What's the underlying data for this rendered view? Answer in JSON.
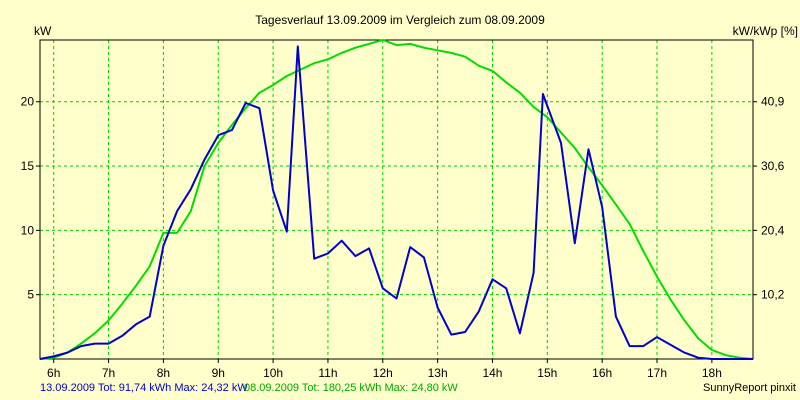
{
  "chart_data": {
    "type": "line",
    "title": "Tagesverlauf 13.09.2009 im Vergleich zum 08.09.2009",
    "ylabel_left": "kW",
    "ylabel_right": "kW/kWp [%]",
    "xlim": [
      5.75,
      18.75
    ],
    "ylim": [
      0,
      24.8
    ],
    "x_ticks": [
      {
        "value": 6,
        "label": "6h"
      },
      {
        "value": 7,
        "label": "7h"
      },
      {
        "value": 8,
        "label": "8h"
      },
      {
        "value": 9,
        "label": "9h"
      },
      {
        "value": 10,
        "label": "10h"
      },
      {
        "value": 11,
        "label": "11h"
      },
      {
        "value": 12,
        "label": "12h"
      },
      {
        "value": 13,
        "label": "13h"
      },
      {
        "value": 14,
        "label": "14h"
      },
      {
        "value": 15,
        "label": "15h"
      },
      {
        "value": 16,
        "label": "16h"
      },
      {
        "value": 17,
        "label": "17h"
      },
      {
        "value": 18,
        "label": "18h"
      }
    ],
    "y_ticks_left": [
      {
        "value": 5,
        "label": "5"
      },
      {
        "value": 10,
        "label": "10"
      },
      {
        "value": 15,
        "label": "15"
      },
      {
        "value": 20,
        "label": "20"
      }
    ],
    "y_ticks_right": [
      {
        "value": 5,
        "label": "10,2"
      },
      {
        "value": 10,
        "label": "20,4"
      },
      {
        "value": 15,
        "label": "30,6"
      },
      {
        "value": 20,
        "label": "40,9"
      }
    ],
    "grid": true,
    "colors": {
      "series1": "#0000cc",
      "series2": "#00dd00",
      "grid": "#00cc00",
      "background": "#ffffcc"
    },
    "series": [
      {
        "name": "13.09.2009",
        "color": "#0000cc",
        "x": [
          5.75,
          6.0,
          6.25,
          6.5,
          6.75,
          7.0,
          7.25,
          7.5,
          7.75,
          8.0,
          8.25,
          8.5,
          8.75,
          9.0,
          9.25,
          9.5,
          9.75,
          10.0,
          10.25,
          10.45,
          10.75,
          11.0,
          11.25,
          11.5,
          11.75,
          12.0,
          12.25,
          12.5,
          12.75,
          13.0,
          13.25,
          13.5,
          13.75,
          14.0,
          14.25,
          14.5,
          14.75,
          14.92,
          15.25,
          15.5,
          15.75,
          16.0,
          16.25,
          16.5,
          16.75,
          17.0,
          17.25,
          17.5,
          17.75,
          18.0,
          18.25,
          18.5,
          18.75
        ],
        "y": [
          0.0,
          0.2,
          0.5,
          1.0,
          1.2,
          1.2,
          1.8,
          2.7,
          3.3,
          8.8,
          11.5,
          13.2,
          15.5,
          17.4,
          17.8,
          19.9,
          19.5,
          13.1,
          9.9,
          24.3,
          7.8,
          8.2,
          9.2,
          8.0,
          8.6,
          5.5,
          4.7,
          8.7,
          7.9,
          4.0,
          1.9,
          2.1,
          3.7,
          6.2,
          5.5,
          2.0,
          6.7,
          20.6,
          16.8,
          9.0,
          16.3,
          11.8,
          3.3,
          1.0,
          1.0,
          1.7,
          1.1,
          0.5,
          0.1,
          0.0,
          0.0,
          0.0,
          0.0
        ]
      },
      {
        "name": "08.09.2009",
        "color": "#00dd00",
        "x": [
          5.75,
          6.0,
          6.25,
          6.5,
          6.75,
          7.0,
          7.25,
          7.5,
          7.75,
          8.0,
          8.25,
          8.5,
          8.75,
          9.0,
          9.25,
          9.5,
          9.75,
          10.0,
          10.25,
          10.5,
          10.75,
          11.0,
          11.25,
          11.5,
          11.75,
          12.0,
          12.25,
          12.5,
          12.75,
          13.0,
          13.25,
          13.5,
          13.75,
          14.0,
          14.25,
          14.5,
          14.75,
          15.0,
          15.25,
          15.5,
          15.75,
          16.0,
          16.25,
          16.5,
          16.75,
          17.0,
          17.25,
          17.5,
          17.75,
          18.0,
          18.25,
          18.5,
          18.75
        ],
        "y": [
          0.0,
          0.1,
          0.5,
          1.2,
          2.0,
          3.0,
          4.3,
          5.7,
          7.2,
          9.8,
          9.8,
          11.5,
          15.0,
          16.8,
          18.2,
          19.5,
          20.7,
          21.3,
          22.0,
          22.5,
          23.0,
          23.3,
          23.8,
          24.2,
          24.5,
          24.8,
          24.4,
          24.5,
          24.2,
          24.0,
          23.8,
          23.5,
          22.8,
          22.4,
          21.5,
          20.7,
          19.6,
          18.8,
          17.6,
          16.4,
          14.9,
          13.5,
          12.0,
          10.5,
          8.4,
          6.4,
          4.6,
          3.0,
          1.6,
          0.7,
          0.3,
          0.1,
          0.0
        ]
      }
    ]
  },
  "footer": {
    "series1_summary": "13.09.2009 Tot: 91,74 kWh Max: 24,32 kW",
    "series2_summary": "08.09.2009 Tot: 180,25 kWh Max: 24,80 kW",
    "credit": "SunnyReport pinxit"
  }
}
